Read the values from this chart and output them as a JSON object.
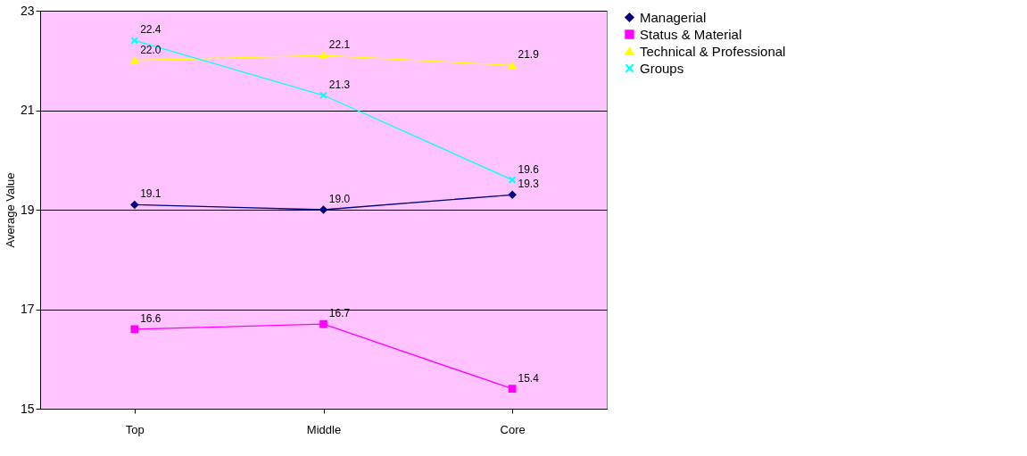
{
  "chart_data": {
    "type": "line",
    "ylabel": "Average Value",
    "categories": [
      "Top",
      "Middle",
      "Core"
    ],
    "series": [
      {
        "name": "Managerial",
        "color": "#000080",
        "marker": "diamond",
        "values": [
          19.1,
          19.0,
          19.3
        ],
        "value_labels": [
          "19.1",
          "19.0",
          "19.3"
        ]
      },
      {
        "name": "Status & Material",
        "color": "#ff00ff",
        "marker": "square",
        "values": [
          16.6,
          16.7,
          15.4
        ],
        "value_labels": [
          "16.6",
          "16.7",
          "15.4"
        ]
      },
      {
        "name": "Technical & Professional",
        "color": "#ffff00",
        "marker": "triangle",
        "values": [
          22.0,
          22.1,
          21.9
        ],
        "value_labels": [
          "22.0",
          "22.1",
          "21.9"
        ]
      },
      {
        "name": "Groups",
        "color": "#00ffff",
        "marker": "cross",
        "values": [
          22.4,
          21.3,
          19.6
        ],
        "value_labels": [
          "22.4",
          "21.3",
          "19.6"
        ]
      }
    ],
    "ylim": [
      15,
      23
    ],
    "yticks": [
      15,
      17,
      19,
      21,
      23
    ],
    "grid": "y",
    "legend": "right"
  }
}
